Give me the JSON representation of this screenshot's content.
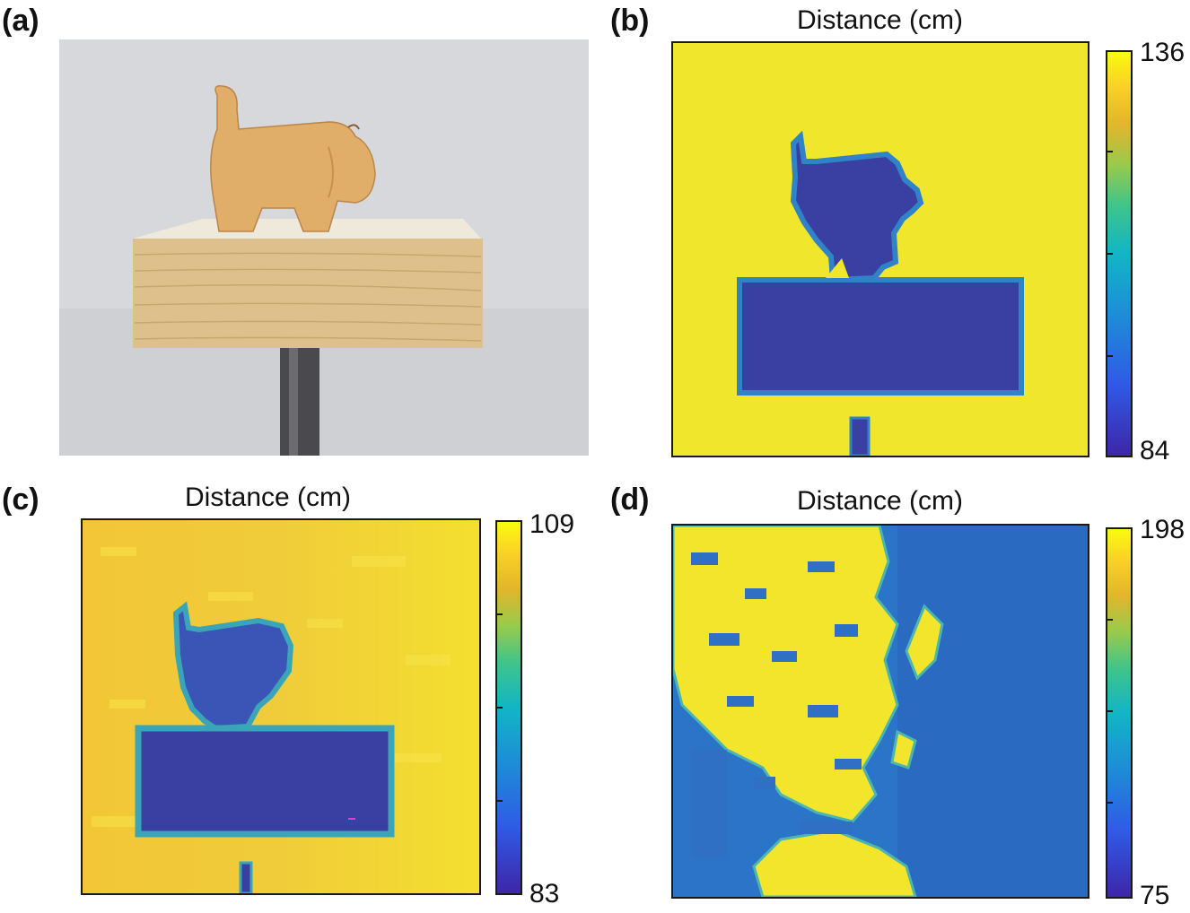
{
  "panels": {
    "a": {
      "label": "(a)"
    },
    "b": {
      "label": "(b)",
      "title": "Distance (cm)",
      "cbar_max": "136",
      "cbar_min": "84"
    },
    "c": {
      "label": "(c)",
      "title": "Distance (cm)",
      "cbar_max": "109",
      "cbar_min": "83"
    },
    "d": {
      "label": "(d)",
      "title": "Distance (cm)",
      "cbar_max": "198",
      "cbar_min": "75"
    }
  },
  "colors": {
    "yellow": "#f2e52b",
    "orange_yellow": "#eec73c",
    "blue_dark": "#3a3ea3",
    "blue_mid": "#2f78c9",
    "photo_bg": "#d4d5d8",
    "wood": "#dcc08a",
    "figurine": "#e2b06a"
  }
}
